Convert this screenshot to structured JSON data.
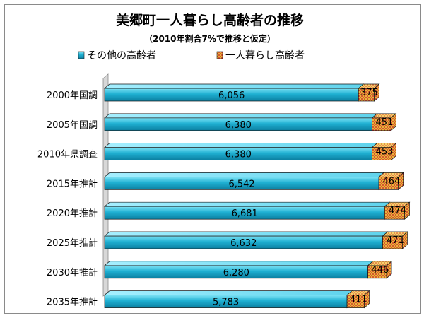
{
  "chart_data": {
    "type": "bar",
    "orientation": "horizontal",
    "stacked": true,
    "style": "3d",
    "title": "美郷町一人暮らし高齢者の推移",
    "subtitle": "（2010年割合7%で推移と仮定）",
    "categories": [
      "2000年国調",
      "2005年国調",
      "2010年県調査",
      "2015年推計",
      "2020年推計",
      "2025年推計",
      "2030年推計",
      "2035年推計"
    ],
    "series": [
      {
        "name": "その他の高齢者",
        "values": [
          6056,
          6380,
          6380,
          6542,
          6681,
          6632,
          6280,
          5783
        ],
        "labels": [
          "6,056",
          "6,380",
          "6,380",
          "6,542",
          "6,681",
          "6,632",
          "6,280",
          "5,783"
        ],
        "color": "#1fb0d2"
      },
      {
        "name": "一人暮らし高齢者",
        "values": [
          375,
          451,
          453,
          464,
          474,
          471,
          446,
          411
        ],
        "labels": [
          "375",
          "451",
          "453",
          "464",
          "474",
          "471",
          "446",
          "411"
        ],
        "color": "#e8c24a",
        "accent_color": "#c8102e"
      }
    ],
    "legend_position": "top",
    "xlim": [
      0,
      7500
    ],
    "grid": false,
    "value_axis_visible": false
  }
}
